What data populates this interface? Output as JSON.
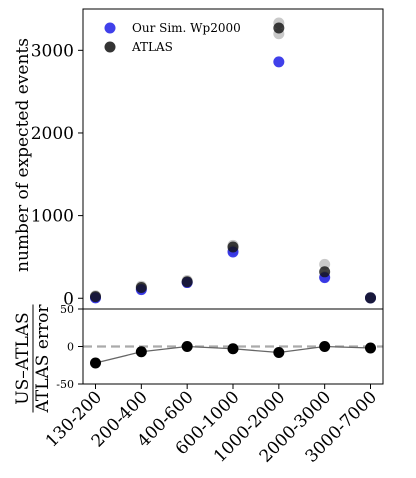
{
  "chart_data": [
    {
      "type": "scatter",
      "categories": [
        "130-200",
        "200-400",
        "400-600",
        "600-1000",
        "1000-2000",
        "2000-3000",
        "3000-7000"
      ],
      "ylabel": "number of expected events",
      "yticks": [
        0,
        1000,
        2000,
        3000
      ],
      "ylim": [
        -130,
        3500
      ],
      "legend_position": "top-left",
      "series": [
        {
          "name": "Our Sim. Wp2000",
          "color": "#1f1fe6",
          "values": [
            5,
            105,
            190,
            560,
            2860,
            250,
            5
          ]
        },
        {
          "name": "ATLAS",
          "color": "#111111",
          "values": [
            20,
            130,
            200,
            620,
            3270,
            320,
            5
          ]
        }
      ],
      "atlas_spread": [
        [
          10,
          30
        ],
        [
          115,
          145
        ],
        [
          190,
          215
        ],
        [
          580,
          640
        ],
        [
          3200,
          3330
        ],
        [
          260,
          410
        ],
        [
          0,
          10
        ]
      ]
    },
    {
      "type": "line",
      "categories": [
        "130-200",
        "200-400",
        "400-600",
        "600-1000",
        "1000-2000",
        "2000-3000",
        "3000-7000"
      ],
      "ylabel_numerator": "US–ATLAS",
      "ylabel_denominator": "ATLAS error",
      "yticks": [
        -50,
        0,
        50
      ],
      "ylim": [
        -50,
        50
      ],
      "reference_line": 0,
      "marker_color": "#000000",
      "line_color": "#666666",
      "values": [
        -22,
        -7,
        0,
        -3,
        -8,
        0,
        -2
      ]
    }
  ]
}
